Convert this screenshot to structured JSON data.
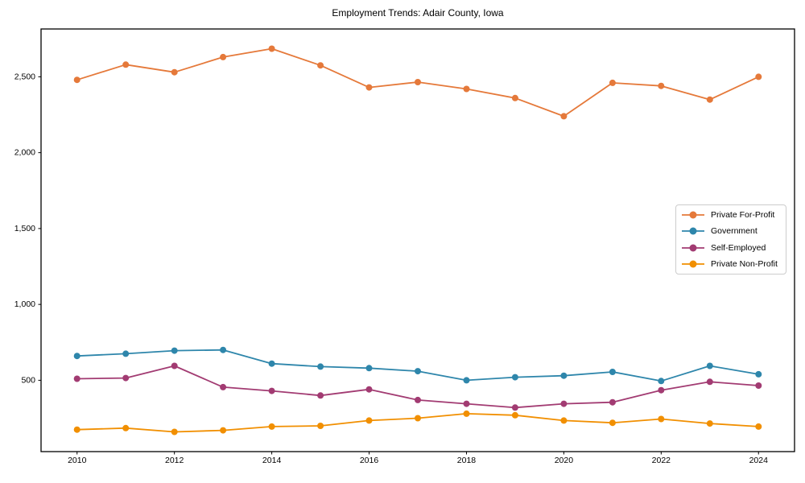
{
  "title": "Employment Trends: Adair County, Iowa",
  "chart_data": {
    "type": "line",
    "title": "Employment Trends: Adair County, Iowa",
    "xlabel": "",
    "ylabel": "",
    "x": [
      2010,
      2011,
      2012,
      2013,
      2014,
      2015,
      2016,
      2017,
      2018,
      2019,
      2020,
      2021,
      2022,
      2023,
      2024
    ],
    "series": [
      {
        "name": "Private For-Profit",
        "color": "#e5793a",
        "values": [
          2480,
          2580,
          2530,
          2630,
          2685,
          2575,
          2430,
          2465,
          2420,
          2360,
          2240,
          2460,
          2440,
          2350,
          2500
        ]
      },
      {
        "name": "Government",
        "color": "#2e86ab",
        "values": [
          660,
          675,
          695,
          700,
          610,
          590,
          580,
          560,
          500,
          520,
          530,
          555,
          495,
          595,
          540
        ]
      },
      {
        "name": "Self-Employed",
        "color": "#a23b72",
        "values": [
          510,
          515,
          595,
          455,
          430,
          400,
          440,
          370,
          345,
          320,
          345,
          355,
          435,
          490,
          465
        ]
      },
      {
        "name": "Private Non-Profit",
        "color": "#f18f01",
        "values": [
          175,
          185,
          160,
          170,
          195,
          200,
          235,
          250,
          280,
          270,
          235,
          220,
          245,
          215,
          195
        ]
      }
    ],
    "xticks": [
      2010,
      2012,
      2014,
      2016,
      2018,
      2020,
      2022,
      2024
    ],
    "xtick_labels": [
      "2010",
      "2012",
      "2014",
      "2016",
      "2018",
      "2020",
      "2022",
      "2024"
    ],
    "yticks": [
      500,
      1000,
      1500,
      2000,
      2500
    ],
    "ytick_labels": [
      "500",
      "1,000",
      "1,500",
      "2,000",
      "2,500"
    ],
    "xlim": [
      2009.26,
      2024.74
    ],
    "ylim": [
      30,
      2815
    ],
    "grid": false,
    "legend_position": "center-right",
    "marker": "circle",
    "axis_color": "#000000"
  }
}
